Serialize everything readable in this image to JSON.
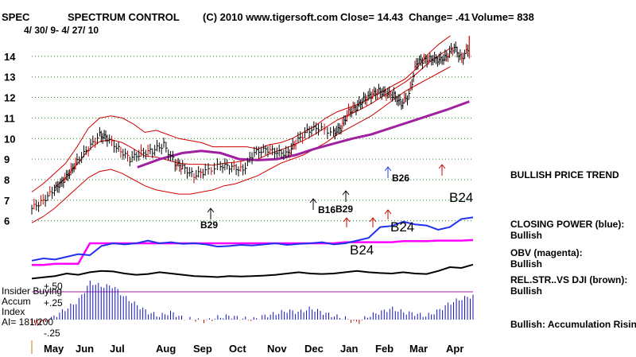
{
  "header": {
    "symbol": "SPEC",
    "name": "SPECTRUM CONTROL",
    "copyright": "(C) 2010 www.tigersoft.com",
    "close": "Close=  14.43",
    "change": "Change= .41",
    "volume": "Volume= 838",
    "date_range": "4/ 30/ 9-  4/ 27/ 10"
  },
  "chart_data": {
    "type": "line",
    "y_ticks": [
      "14",
      "13",
      "12",
      "11",
      "10",
      "9",
      "8",
      "7",
      "6"
    ],
    "x_ticks": [
      "May",
      "Jun",
      "Jul",
      "Aug",
      "Sep",
      "Oct",
      "Nov",
      "Dec",
      "Jan",
      "Feb",
      "Mar",
      "Apr"
    ],
    "ylim": [
      5.6,
      15
    ],
    "grid": true,
    "price": {
      "name": "Price",
      "x": [
        0,
        0.3,
        0.6,
        0.8,
        1,
        1.2,
        1.5,
        1.8,
        2,
        2.3,
        2.6,
        2.9,
        3.2,
        3.5,
        3.8,
        4,
        4.3,
        4.6,
        5,
        5.3,
        5.6,
        5.9,
        6.2,
        6.5,
        6.8,
        7,
        7.3,
        7.6,
        8,
        8.2,
        8.4,
        8.6,
        8.8,
        9,
        9.2,
        9.4,
        9.6,
        9.8,
        10,
        10.2,
        10.4,
        10.6,
        10.8,
        11,
        11.2,
        11.4,
        11.6
      ],
      "y": [
        6.6,
        7.0,
        7.5,
        7.9,
        8.3,
        8.9,
        9.5,
        10.2,
        10.0,
        9.5,
        9.0,
        9.3,
        9.4,
        9.7,
        8.8,
        8.6,
        8.2,
        8.4,
        8.7,
        8.6,
        8.5,
        9.3,
        9.5,
        9.3,
        9.3,
        9.8,
        10.4,
        10.5,
        10.3,
        10.5,
        11.3,
        11.5,
        11.9,
        12.1,
        12.3,
        12.2,
        12.1,
        11.7,
        12.1,
        13.7,
        13.8,
        13.9,
        13.8,
        14.0,
        14.43,
        13.9,
        14.43
      ]
    },
    "bollinger": {
      "upper": [
        7.4,
        7.8,
        8.3,
        8.8,
        9.6,
        10.5,
        11.0,
        11.1,
        11.0,
        10.7,
        10.3,
        10.4,
        10.2,
        10.0,
        9.9,
        9.8,
        9.6,
        9.6,
        9.6,
        9.6,
        9.5,
        9.7,
        9.8,
        10.0,
        10.3,
        10.6,
        11.0,
        11.3,
        11.5,
        11.7,
        12.0,
        12.3,
        12.6,
        12.9,
        13.4,
        14.1,
        14.6,
        15.0
      ],
      "lower": [
        5.9,
        6.2,
        6.6,
        7.1,
        7.6,
        8.1,
        8.4,
        8.5,
        8.3,
        8.0,
        7.7,
        7.5,
        7.4,
        7.3,
        7.3,
        7.4,
        7.5,
        7.7,
        7.8,
        8.0,
        8.2,
        8.5,
        8.8,
        9.0,
        9.2,
        9.5,
        9.8,
        10.2,
        10.5,
        10.8,
        11.1,
        11.5,
        11.9,
        12.3,
        12.6,
        12.9,
        13.2,
        13.5
      ],
      "x": [
        0,
        0.3,
        0.6,
        0.9,
        1.2,
        1.5,
        1.8,
        2.1,
        2.4,
        2.7,
        3.0,
        3.3,
        3.6,
        3.9,
        4.2,
        4.5,
        4.8,
        5.1,
        5.4,
        5.7,
        6.0,
        6.3,
        6.6,
        6.9,
        7.2,
        7.5,
        7.8,
        8.1,
        8.4,
        8.7,
        9.0,
        9.3,
        9.6,
        9.9,
        10.2,
        10.5,
        10.8,
        11.1
      ]
    },
    "moving_average_purple": {
      "x": [
        2.8,
        3.4,
        4.0,
        4.5,
        5.0,
        5.5,
        6.0,
        6.5,
        7.0,
        7.5,
        8.0,
        8.5,
        9.0,
        9.5,
        10.0,
        10.5,
        11.0,
        11.6
      ],
      "y": [
        8.6,
        9.0,
        9.3,
        9.4,
        9.3,
        9.0,
        8.95,
        9.0,
        9.2,
        9.5,
        9.75,
        10.0,
        10.2,
        10.5,
        10.8,
        11.1,
        11.4,
        11.8
      ]
    },
    "closing_power_blue": [
      0.18,
      0.22,
      0.2,
      0.25,
      0.3,
      0.28,
      0.45,
      0.5,
      0.48,
      0.5,
      0.55,
      0.5,
      0.52,
      0.49,
      0.5,
      0.48,
      0.44,
      0.45,
      0.47,
      0.46,
      0.48,
      0.5,
      0.47,
      0.49,
      0.5,
      0.52,
      0.48,
      0.5,
      0.55,
      0.6,
      0.8,
      0.82,
      0.9,
      0.85,
      0.83,
      0.75,
      0.8,
      0.95,
      0.98
    ],
    "obv_magenta": [
      0.1,
      0.1,
      0.12,
      0.12,
      0.12,
      0.5,
      0.5,
      0.5,
      0.5,
      0.5,
      0.5,
      0.5,
      0.5,
      0.5,
      0.5,
      0.5,
      0.5,
      0.5,
      0.5,
      0.5,
      0.5,
      0.5,
      0.5,
      0.5,
      0.5,
      0.5,
      0.5,
      0.52,
      0.52,
      0.52,
      0.52,
      0.52,
      0.54,
      0.54,
      0.54,
      0.55,
      0.55,
      0.55,
      0.56
    ],
    "rel_strength_brown": [
      0.3,
      0.35,
      0.4,
      0.5,
      0.45,
      0.55,
      0.6,
      0.58,
      0.5,
      0.45,
      0.48,
      0.55,
      0.5,
      0.45,
      0.4,
      0.38,
      0.36,
      0.4,
      0.38,
      0.4,
      0.42,
      0.45,
      0.5,
      0.55,
      0.5,
      0.48,
      0.5,
      0.55,
      0.6,
      0.55,
      0.52,
      0.5,
      0.55,
      0.5,
      0.48,
      0.6,
      0.75,
      0.72,
      0.85
    ],
    "accum_index": [
      -0.08,
      -0.05,
      0.05,
      0.15,
      0.25,
      0.5,
      0.45,
      0.45,
      0.3,
      0.2,
      0.1,
      0.05,
      0.1,
      0.02,
      0.0,
      -0.02,
      0.03,
      0.05,
      0.02,
      0.0,
      0.05,
      0.08,
      0.12,
      0.1,
      0.15,
      0.1,
      0.05,
      0.02,
      -0.05,
      0.05,
      0.1,
      0.15,
      0.1,
      0.08,
      0.05,
      0.12,
      0.22,
      0.28,
      0.32
    ]
  },
  "signals": [
    {
      "label": "B29",
      "dir": "up",
      "color": "#000000"
    },
    {
      "label": "B16",
      "dir": "up",
      "color": "#000000"
    },
    {
      "label": "B29",
      "dir": "up",
      "color": "#000000"
    },
    {
      "label": "B26",
      "dir": "up",
      "color": "#2040e0"
    },
    {
      "label": "B24",
      "dir": "up",
      "color": "#000000"
    },
    {
      "label": "B24",
      "dir": "none",
      "color": "#000000"
    },
    {
      "label": "B24",
      "dir": "none",
      "color": "#000000"
    }
  ],
  "right_panel": {
    "trend": "BULLISH PRICE TREND",
    "cp_label": "CLOSING POWER (blue):",
    "cp_value": "Bullish",
    "obv_label": "OBV (magenta):",
    "obv_value": "Bullish",
    "rs_label": "REL.STR..VS DJI (brown):",
    "rs_value": "Bullish",
    "accum": "Bullish: Accumulation Rising"
  },
  "indicator_labels": {
    "insider": "Insider Buying",
    "accum": "Accum",
    "index": "Index",
    "ai": "AI= 181/200",
    "plus50": "+.50",
    "plus25": "+.25",
    "minus25": "-.25"
  },
  "colors": {
    "price": "#000000",
    "bollinger": "#d00000",
    "ma": "#a020a0",
    "closing_power": "#2030f0",
    "obv": "#ff00ff",
    "rel_strength": "#000000",
    "accum": "#1010c0",
    "grid": "#2a8a2a"
  }
}
